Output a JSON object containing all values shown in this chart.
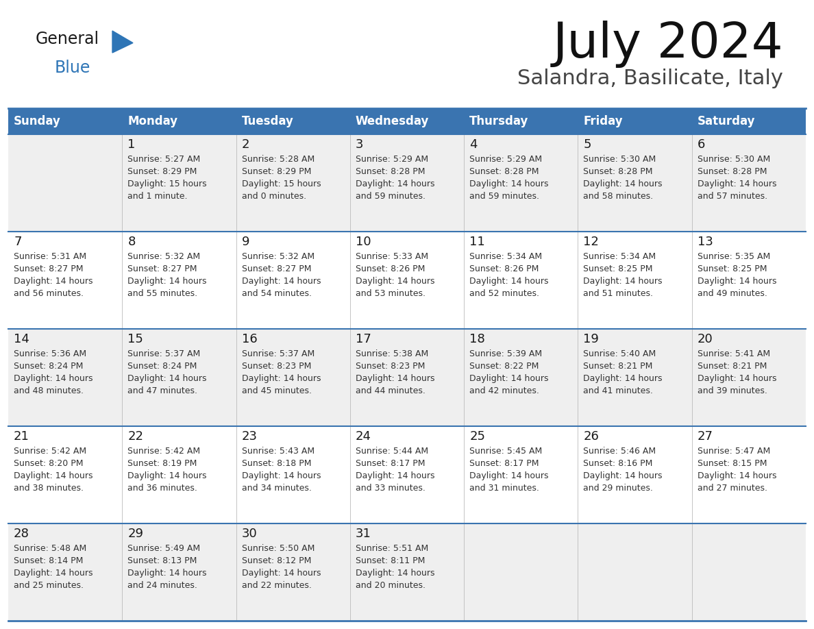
{
  "title": "July 2024",
  "subtitle": "Salandra, Basilicate, Italy",
  "header_color": "#3A74B0",
  "header_text_color": "#FFFFFF",
  "row_bg_even": "#EFEFEF",
  "row_bg_odd": "#FFFFFF",
  "border_color": "#3A74B0",
  "text_color": "#333333",
  "days_of_week": [
    "Sunday",
    "Monday",
    "Tuesday",
    "Wednesday",
    "Thursday",
    "Friday",
    "Saturday"
  ],
  "logo_general_color": "#1A1A1A",
  "logo_blue_color": "#2E75B6",
  "calendar_data": [
    [
      {
        "day": "",
        "sunrise": "",
        "sunset": "",
        "dl1": "",
        "dl2": ""
      },
      {
        "day": "1",
        "sunrise": "5:27 AM",
        "sunset": "8:29 PM",
        "dl1": "Daylight: 15 hours",
        "dl2": "and 1 minute."
      },
      {
        "day": "2",
        "sunrise": "5:28 AM",
        "sunset": "8:29 PM",
        "dl1": "Daylight: 15 hours",
        "dl2": "and 0 minutes."
      },
      {
        "day": "3",
        "sunrise": "5:29 AM",
        "sunset": "8:28 PM",
        "dl1": "Daylight: 14 hours",
        "dl2": "and 59 minutes."
      },
      {
        "day": "4",
        "sunrise": "5:29 AM",
        "sunset": "8:28 PM",
        "dl1": "Daylight: 14 hours",
        "dl2": "and 59 minutes."
      },
      {
        "day": "5",
        "sunrise": "5:30 AM",
        "sunset": "8:28 PM",
        "dl1": "Daylight: 14 hours",
        "dl2": "and 58 minutes."
      },
      {
        "day": "6",
        "sunrise": "5:30 AM",
        "sunset": "8:28 PM",
        "dl1": "Daylight: 14 hours",
        "dl2": "and 57 minutes."
      }
    ],
    [
      {
        "day": "7",
        "sunrise": "5:31 AM",
        "sunset": "8:27 PM",
        "dl1": "Daylight: 14 hours",
        "dl2": "and 56 minutes."
      },
      {
        "day": "8",
        "sunrise": "5:32 AM",
        "sunset": "8:27 PM",
        "dl1": "Daylight: 14 hours",
        "dl2": "and 55 minutes."
      },
      {
        "day": "9",
        "sunrise": "5:32 AM",
        "sunset": "8:27 PM",
        "dl1": "Daylight: 14 hours",
        "dl2": "and 54 minutes."
      },
      {
        "day": "10",
        "sunrise": "5:33 AM",
        "sunset": "8:26 PM",
        "dl1": "Daylight: 14 hours",
        "dl2": "and 53 minutes."
      },
      {
        "day": "11",
        "sunrise": "5:34 AM",
        "sunset": "8:26 PM",
        "dl1": "Daylight: 14 hours",
        "dl2": "and 52 minutes."
      },
      {
        "day": "12",
        "sunrise": "5:34 AM",
        "sunset": "8:25 PM",
        "dl1": "Daylight: 14 hours",
        "dl2": "and 51 minutes."
      },
      {
        "day": "13",
        "sunrise": "5:35 AM",
        "sunset": "8:25 PM",
        "dl1": "Daylight: 14 hours",
        "dl2": "and 49 minutes."
      }
    ],
    [
      {
        "day": "14",
        "sunrise": "5:36 AM",
        "sunset": "8:24 PM",
        "dl1": "Daylight: 14 hours",
        "dl2": "and 48 minutes."
      },
      {
        "day": "15",
        "sunrise": "5:37 AM",
        "sunset": "8:24 PM",
        "dl1": "Daylight: 14 hours",
        "dl2": "and 47 minutes."
      },
      {
        "day": "16",
        "sunrise": "5:37 AM",
        "sunset": "8:23 PM",
        "dl1": "Daylight: 14 hours",
        "dl2": "and 45 minutes."
      },
      {
        "day": "17",
        "sunrise": "5:38 AM",
        "sunset": "8:23 PM",
        "dl1": "Daylight: 14 hours",
        "dl2": "and 44 minutes."
      },
      {
        "day": "18",
        "sunrise": "5:39 AM",
        "sunset": "8:22 PM",
        "dl1": "Daylight: 14 hours",
        "dl2": "and 42 minutes."
      },
      {
        "day": "19",
        "sunrise": "5:40 AM",
        "sunset": "8:21 PM",
        "dl1": "Daylight: 14 hours",
        "dl2": "and 41 minutes."
      },
      {
        "day": "20",
        "sunrise": "5:41 AM",
        "sunset": "8:21 PM",
        "dl1": "Daylight: 14 hours",
        "dl2": "and 39 minutes."
      }
    ],
    [
      {
        "day": "21",
        "sunrise": "5:42 AM",
        "sunset": "8:20 PM",
        "dl1": "Daylight: 14 hours",
        "dl2": "and 38 minutes."
      },
      {
        "day": "22",
        "sunrise": "5:42 AM",
        "sunset": "8:19 PM",
        "dl1": "Daylight: 14 hours",
        "dl2": "and 36 minutes."
      },
      {
        "day": "23",
        "sunrise": "5:43 AM",
        "sunset": "8:18 PM",
        "dl1": "Daylight: 14 hours",
        "dl2": "and 34 minutes."
      },
      {
        "day": "24",
        "sunrise": "5:44 AM",
        "sunset": "8:17 PM",
        "dl1": "Daylight: 14 hours",
        "dl2": "and 33 minutes."
      },
      {
        "day": "25",
        "sunrise": "5:45 AM",
        "sunset": "8:17 PM",
        "dl1": "Daylight: 14 hours",
        "dl2": "and 31 minutes."
      },
      {
        "day": "26",
        "sunrise": "5:46 AM",
        "sunset": "8:16 PM",
        "dl1": "Daylight: 14 hours",
        "dl2": "and 29 minutes."
      },
      {
        "day": "27",
        "sunrise": "5:47 AM",
        "sunset": "8:15 PM",
        "dl1": "Daylight: 14 hours",
        "dl2": "and 27 minutes."
      }
    ],
    [
      {
        "day": "28",
        "sunrise": "5:48 AM",
        "sunset": "8:14 PM",
        "dl1": "Daylight: 14 hours",
        "dl2": "and 25 minutes."
      },
      {
        "day": "29",
        "sunrise": "5:49 AM",
        "sunset": "8:13 PM",
        "dl1": "Daylight: 14 hours",
        "dl2": "and 24 minutes."
      },
      {
        "day": "30",
        "sunrise": "5:50 AM",
        "sunset": "8:12 PM",
        "dl1": "Daylight: 14 hours",
        "dl2": "and 22 minutes."
      },
      {
        "day": "31",
        "sunrise": "5:51 AM",
        "sunset": "8:11 PM",
        "dl1": "Daylight: 14 hours",
        "dl2": "and 20 minutes."
      },
      {
        "day": "",
        "sunrise": "",
        "sunset": "",
        "dl1": "",
        "dl2": ""
      },
      {
        "day": "",
        "sunrise": "",
        "sunset": "",
        "dl1": "",
        "dl2": ""
      },
      {
        "day": "",
        "sunrise": "",
        "sunset": "",
        "dl1": "",
        "dl2": ""
      }
    ]
  ]
}
